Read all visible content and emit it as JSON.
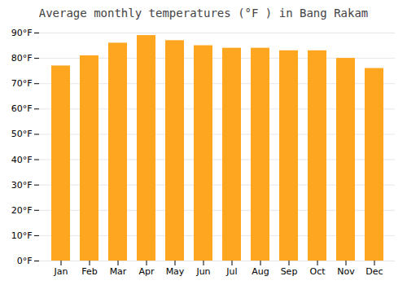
{
  "chart_data": {
    "type": "bar",
    "title": "Average monthly temperatures (°F ) in Bang Rakam",
    "categories": [
      "Jan",
      "Feb",
      "Mar",
      "Apr",
      "May",
      "Jun",
      "Jul",
      "Aug",
      "Sep",
      "Oct",
      "Nov",
      "Dec"
    ],
    "values": [
      77,
      81,
      86,
      89,
      87,
      85,
      84,
      84,
      83,
      83,
      80,
      76
    ],
    "color": "#FFA620",
    "ylim": [
      0,
      90
    ],
    "yticks": [
      {
        "value": 0,
        "label": "0°F"
      },
      {
        "value": 10,
        "label": "10°F"
      },
      {
        "value": 20,
        "label": "20°F"
      },
      {
        "value": 30,
        "label": "30°F"
      },
      {
        "value": 40,
        "label": "40°F"
      },
      {
        "value": 50,
        "label": "50°F"
      },
      {
        "value": 60,
        "label": "60°F"
      },
      {
        "value": 70,
        "label": "70°F"
      },
      {
        "value": 80,
        "label": "80°F"
      },
      {
        "value": 90,
        "label": "90°F"
      }
    ],
    "grid": true
  }
}
